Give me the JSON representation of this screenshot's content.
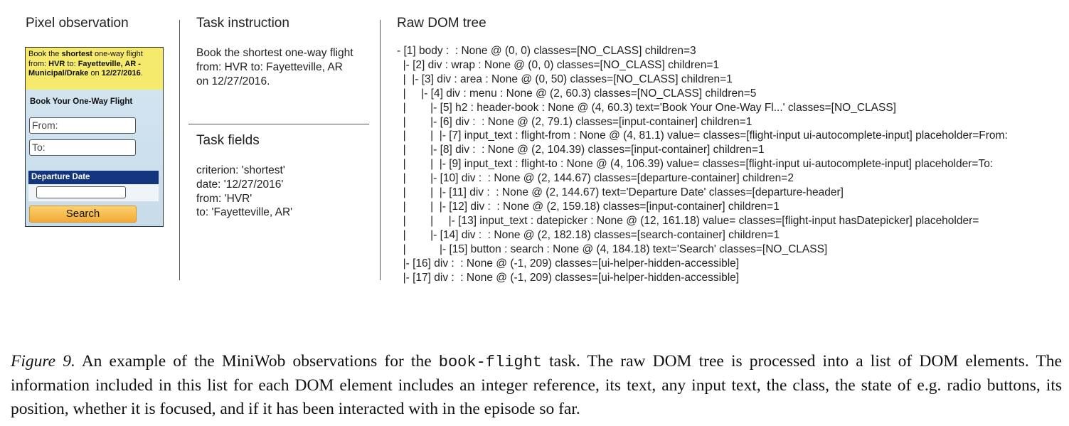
{
  "headings": {
    "pixel": "Pixel observation",
    "instruction": "Task instruction",
    "fields": "Task fields",
    "dom": "Raw DOM tree"
  },
  "pixel_observation": {
    "instruction_parts": [
      "Book the ",
      "shortest",
      " one-way flight from: ",
      "HVR",
      " to: ",
      "Fayetteville, AR - Municipal/Drake",
      " on ",
      "12/27/2016",
      "."
    ],
    "form_title": "Book Your One-Way Flight",
    "from_placeholder": "From:",
    "to_placeholder": "To:",
    "departure_header": "Departure Date",
    "search_label": "Search"
  },
  "task_instruction": "Book the shortest one-way flight\nfrom: HVR to: Fayetteville, AR\non 12/27/2016.",
  "task_fields": "criterion: 'shortest'\ndate: '12/27/2016'\nfrom: 'HVR'\nto: 'Fayetteville, AR'",
  "dom_tree": "- [1] body :  : None @ (0, 0) classes=[NO_CLASS] children=3\n  |- [2] div : wrap : None @ (0, 0) classes=[NO_CLASS] children=1\n  |  |- [3] div : area : None @ (0, 50) classes=[NO_CLASS] children=1\n  |     |- [4] div : menu : None @ (2, 60.3) classes=[NO_CLASS] children=5\n  |        |- [5] h2 : header-book : None @ (4, 60.3) text='Book Your One-Way Fl...' classes=[NO_CLASS]\n  |        |- [6] div :  : None @ (2, 79.1) classes=[input-container] children=1\n  |        |  |- [7] input_text : flight-from : None @ (4, 81.1) value= classes=[flight-input ui-autocomplete-input] placeholder=From:\n  |        |- [8] div :  : None @ (2, 104.39) classes=[input-container] children=1\n  |        |  |- [9] input_text : flight-to : None @ (4, 106.39) value= classes=[flight-input ui-autocomplete-input] placeholder=To:\n  |        |- [10] div :  : None @ (2, 144.67) classes=[departure-container] children=2\n  |        |  |- [11] div :  : None @ (2, 144.67) text='Departure Date' classes=[departure-header]\n  |        |  |- [12] div :  : None @ (2, 159.18) classes=[input-container] children=1\n  |        |     |- [13] input_text : datepicker : None @ (12, 161.18) value= classes=[flight-input hasDatepicker] placeholder=\n  |        |- [14] div :  : None @ (2, 182.18) classes=[search-container] children=1\n  |           |- [15] button : search : None @ (4, 184.18) text='Search' classes=[NO_CLASS]\n  |- [16] div :  : None @ (-1, 209) classes=[ui-helper-hidden-accessible]\n  |- [17] div :  : None @ (-1, 209) classes=[ui-helper-hidden-accessible]",
  "caption": {
    "label": "Figure 9.",
    "part1": " An example of the MiniWob observations for the ",
    "task_name": "book-flight",
    "part2": " task. The raw DOM tree is processed into a list of DOM elements. The information included in this list for each DOM element includes an integer reference, its text, any input text, the class, the state of e.g. radio buttons, its position, whether it is focused, and if it has been interacted with in the episode so far."
  }
}
